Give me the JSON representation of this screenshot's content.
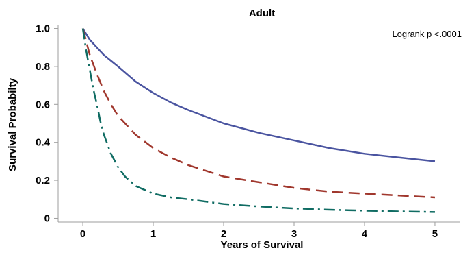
{
  "chart_data": {
    "type": "line",
    "title": "Adult",
    "xlabel": "Years of Survival",
    "ylabel": "Survival Probabilty",
    "xlim": [
      -0.35,
      5.35
    ],
    "ylim": [
      -0.02,
      1.02
    ],
    "x_ticks": [
      0,
      1,
      2,
      3,
      4,
      5
    ],
    "x_tick_labels": [
      "0",
      "1",
      "2",
      "3",
      "4",
      "5"
    ],
    "y_ticks": [
      0,
      0.2,
      0.4,
      0.6,
      0.8,
      1.0
    ],
    "y_tick_labels": [
      "0",
      "0.2",
      "0.4",
      "0.6",
      "0.8",
      "1.0"
    ],
    "annotation": "Logrank p <.0001",
    "grid": false,
    "series": [
      {
        "color": "#4a54a0",
        "dash": "solid",
        "x": [
          0,
          0.1,
          0.2,
          0.3,
          0.4,
          0.5,
          0.75,
          1,
          1.25,
          1.5,
          2,
          2.5,
          3,
          3.5,
          4,
          4.5,
          5
        ],
        "y": [
          1.0,
          0.94,
          0.9,
          0.86,
          0.83,
          0.8,
          0.72,
          0.66,
          0.61,
          0.57,
          0.5,
          0.45,
          0.41,
          0.37,
          0.34,
          0.32,
          0.3
        ]
      },
      {
        "color": "#a0372d",
        "dash": "long-dash",
        "x": [
          0,
          0.1,
          0.2,
          0.3,
          0.4,
          0.5,
          0.75,
          1,
          1.25,
          1.5,
          2,
          2.5,
          3,
          3.5,
          4,
          4.5,
          5
        ],
        "y": [
          1.0,
          0.86,
          0.76,
          0.67,
          0.6,
          0.54,
          0.44,
          0.37,
          0.32,
          0.28,
          0.22,
          0.19,
          0.16,
          0.14,
          0.13,
          0.12,
          0.11
        ]
      },
      {
        "color": "#106c63",
        "dash": "dash-dot",
        "x": [
          0,
          0.05,
          0.1,
          0.15,
          0.2,
          0.25,
          0.3,
          0.4,
          0.5,
          0.6,
          0.75,
          1,
          1.25,
          1.5,
          2,
          2.5,
          3,
          3.5,
          4,
          4.5,
          5
        ],
        "y": [
          1.0,
          0.88,
          0.78,
          0.68,
          0.6,
          0.51,
          0.44,
          0.34,
          0.27,
          0.22,
          0.17,
          0.13,
          0.11,
          0.1,
          0.075,
          0.062,
          0.052,
          0.045,
          0.04,
          0.036,
          0.033
        ]
      }
    ]
  }
}
